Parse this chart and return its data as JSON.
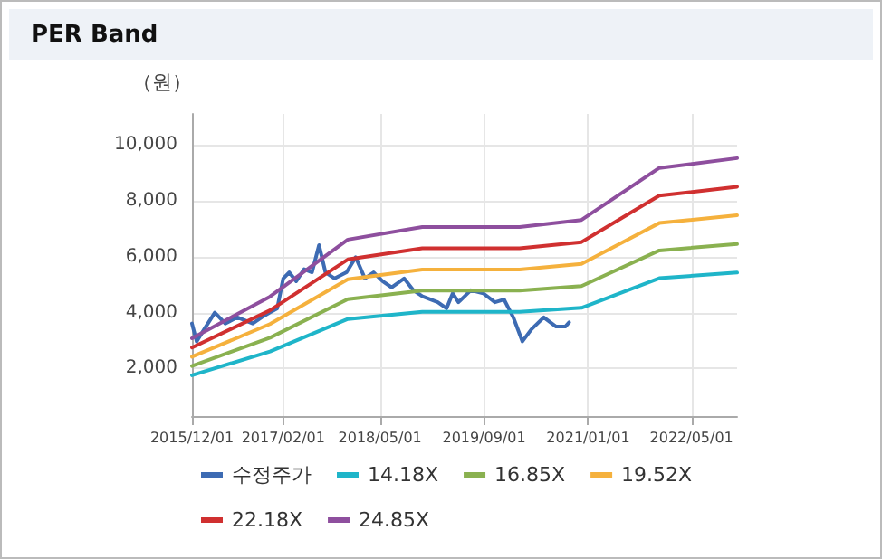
{
  "chart_data": {
    "type": "line",
    "title": "PER Band",
    "ylabel": "（원）",
    "xlim": [
      "2015-12-01",
      "2022-12-01"
    ],
    "xticks": [
      {
        "value": "2015-12-01",
        "label": "2015/12/01"
      },
      {
        "value": "2017-02-01",
        "label": "2017/02/01"
      },
      {
        "value": "2018-05-01",
        "label": "2018/05/01"
      },
      {
        "value": "2019-09-01",
        "label": "2019/09/01"
      },
      {
        "value": "2021-01-01",
        "label": "2021/01/01"
      },
      {
        "value": "2022-05-01",
        "label": "2022/05/01"
      }
    ],
    "ylim": [
      300,
      11100
    ],
    "yticks": [
      {
        "value": 2000,
        "label": "2,000"
      },
      {
        "value": 4000,
        "label": "4,000"
      },
      {
        "value": 6000,
        "label": "6,000"
      },
      {
        "value": 8000,
        "label": "8,000"
      },
      {
        "value": 10000,
        "label": "10,000"
      }
    ],
    "grid": true,
    "legend": "bottom",
    "marker": "none",
    "line_style": "solid",
    "series": [
      {
        "name": "수정주가",
        "color": "#3d6bb3",
        "x": [
          "2015-12-01",
          "2015-12-23",
          "2016-01-27",
          "2016-03-17",
          "2016-05-05",
          "2016-07-01",
          "2016-09-11",
          "2016-10-23",
          "2016-11-30",
          "2017-01-04",
          "2017-02-01",
          "2017-03-01",
          "2017-04-03",
          "2017-05-10",
          "2017-06-16",
          "2017-07-19",
          "2017-08-18",
          "2017-09-30",
          "2017-11-25",
          "2018-01-07",
          "2018-02-19",
          "2018-04-01",
          "2018-05-13",
          "2018-06-25",
          "2018-08-22",
          "2018-10-04",
          "2018-11-16",
          "2019-01-27",
          "2019-03-09",
          "2019-04-07",
          "2019-05-04",
          "2019-07-01",
          "2019-08-28",
          "2019-10-22",
          "2019-12-04",
          "2020-01-16",
          "2020-02-28",
          "2020-04-10",
          "2020-06-07",
          "2020-08-04",
          "2020-09-16",
          "2020-10-04"
        ],
        "values": [
          3610,
          2970,
          3400,
          4000,
          3610,
          3830,
          3610,
          3830,
          4000,
          4150,
          5220,
          5440,
          5120,
          5550,
          5440,
          6410,
          5440,
          5220,
          5440,
          5980,
          5220,
          5440,
          5120,
          4900,
          5220,
          4800,
          4580,
          4370,
          4150,
          4690,
          4370,
          4800,
          4690,
          4370,
          4470,
          3830,
          2970,
          3400,
          3830,
          3500,
          3500,
          3650
        ]
      },
      {
        "name": "14.18X",
        "color": "#1fb5c9",
        "x": [
          "2015-12-01",
          "2016-12-01",
          "2017-12-01",
          "2018-11-15",
          "2020-02-15",
          "2020-12-01",
          "2021-12-01",
          "2022-12-01"
        ],
        "values": [
          1760,
          2610,
          3770,
          4030,
          4030,
          4170,
          5230,
          5430
        ]
      },
      {
        "name": "16.85X",
        "color": "#8ab150",
        "x": [
          "2015-12-01",
          "2016-12-01",
          "2017-12-01",
          "2018-11-15",
          "2020-02-15",
          "2020-12-01",
          "2021-12-01",
          "2022-12-01"
        ],
        "values": [
          2090,
          3100,
          4480,
          4790,
          4790,
          4950,
          6220,
          6450
        ]
      },
      {
        "name": "19.52X",
        "color": "#f5b13d",
        "x": [
          "2015-12-01",
          "2016-12-01",
          "2017-12-01",
          "2018-11-15",
          "2020-02-15",
          "2020-12-01",
          "2021-12-01",
          "2022-12-01"
        ],
        "values": [
          2420,
          3590,
          5190,
          5540,
          5540,
          5740,
          7200,
          7480
        ]
      },
      {
        "name": "22.18X",
        "color": "#d03030",
        "x": [
          "2015-12-01",
          "2016-12-01",
          "2017-12-01",
          "2018-11-15",
          "2020-02-15",
          "2020-12-01",
          "2021-12-01",
          "2022-12-01"
        ],
        "values": [
          2750,
          4080,
          5900,
          6300,
          6300,
          6520,
          8180,
          8500
        ]
      },
      {
        "name": "24.85X",
        "color": "#8e4f9e",
        "x": [
          "2015-12-01",
          "2016-12-01",
          "2017-12-01",
          "2018-11-15",
          "2020-02-15",
          "2020-12-01",
          "2021-12-01",
          "2022-12-01"
        ],
        "values": [
          3080,
          4570,
          6610,
          7060,
          7060,
          7310,
          9170,
          9520
        ]
      }
    ]
  }
}
